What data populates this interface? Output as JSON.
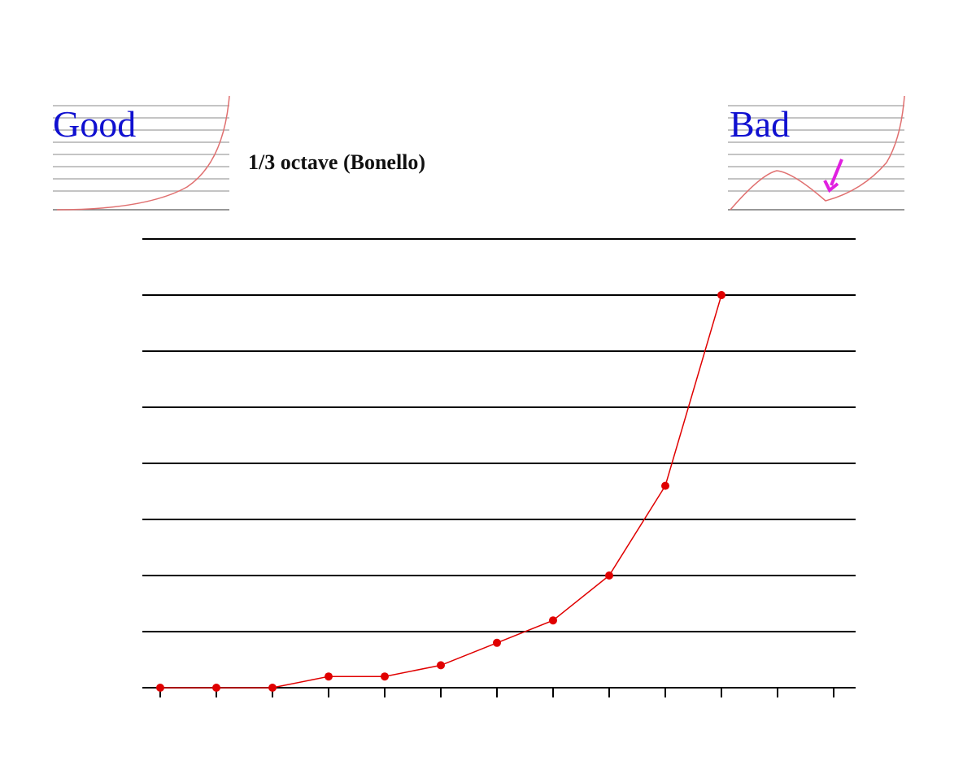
{
  "chart_data": {
    "type": "line",
    "title": "1/3 octave (Bonello)",
    "annotations": [
      "Good",
      "Bad"
    ],
    "categories": [
      null,
      null,
      null,
      null,
      null,
      null,
      null,
      null,
      null,
      null,
      null,
      null,
      null
    ],
    "values": [
      0,
      0,
      0,
      0.2,
      0.2,
      0.4,
      0.8,
      1.2,
      2,
      3.6,
      7,
      null,
      null
    ],
    "color": "#e00000",
    "ylim": [
      0,
      8
    ],
    "yticks": [
      0,
      1,
      2,
      3,
      4,
      5,
      6,
      7,
      8
    ],
    "grid": true
  }
}
